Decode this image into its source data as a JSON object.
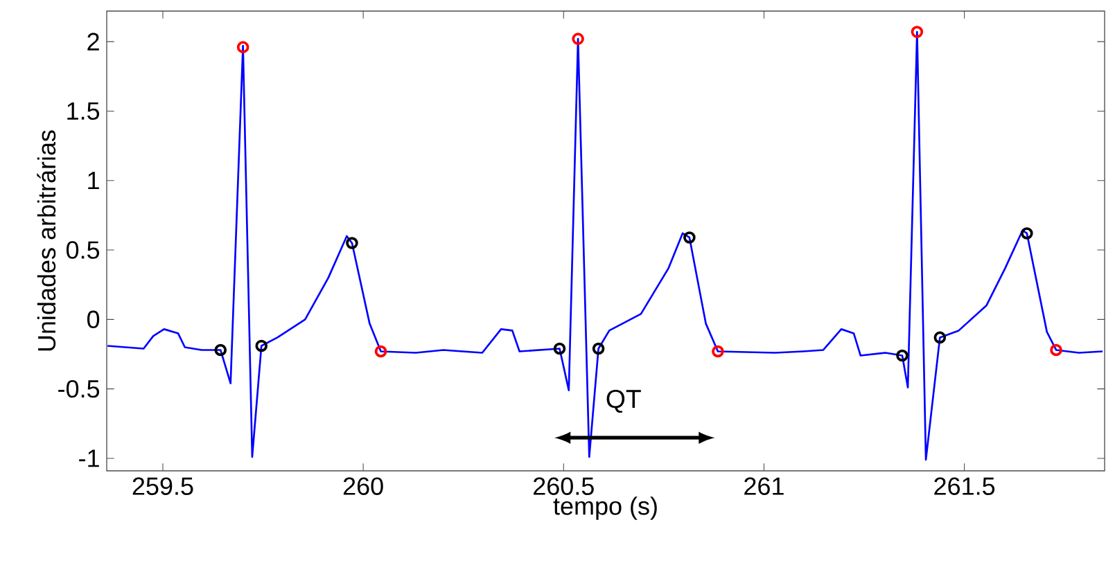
{
  "chart_data": {
    "type": "line",
    "xlabel": "tempo (s)",
    "ylabel": "Unidades arbitrárias",
    "xlim": [
      259.36,
      261.85
    ],
    "ylim": [
      -1.09,
      2.22
    ],
    "xticks": [
      259.5,
      260,
      260.5,
      261,
      261.5
    ],
    "yticks": [
      -1,
      -0.5,
      0,
      0.5,
      1,
      1.5,
      2
    ],
    "marker": "none",
    "line_style": "solid",
    "series": [
      {
        "color": "#0000ff",
        "x": [
          259.362,
          259.452,
          259.476,
          259.503,
          259.538,
          259.555,
          259.597,
          259.644,
          259.669,
          259.7,
          259.723,
          259.746,
          259.786,
          259.855,
          259.913,
          259.959,
          259.972,
          260.016,
          260.044,
          260.131,
          260.2,
          260.297,
          260.344,
          260.372,
          260.39,
          260.49,
          260.513,
          260.536,
          260.564,
          260.587,
          260.614,
          260.693,
          260.762,
          260.797,
          260.814,
          260.855,
          260.885,
          261.028,
          261.097,
          261.148,
          261.193,
          261.224,
          261.241,
          261.303,
          261.345,
          261.359,
          261.382,
          261.404,
          261.439,
          261.486,
          261.555,
          261.602,
          261.645,
          261.656,
          261.706,
          261.729,
          261.786,
          261.845
        ],
        "values": [
          -0.19,
          -0.21,
          -0.12,
          -0.07,
          -0.1,
          -0.2,
          -0.22,
          -0.22,
          -0.46,
          1.97,
          -0.99,
          -0.19,
          -0.13,
          0.0,
          0.3,
          0.6,
          0.55,
          -0.03,
          -0.23,
          -0.24,
          -0.22,
          -0.24,
          -0.07,
          -0.08,
          -0.23,
          -0.21,
          -0.51,
          2.02,
          -0.99,
          -0.21,
          -0.08,
          0.04,
          0.37,
          0.62,
          0.59,
          -0.03,
          -0.23,
          -0.24,
          -0.23,
          -0.22,
          -0.07,
          -0.1,
          -0.26,
          -0.24,
          -0.26,
          -0.49,
          2.07,
          -1.01,
          -0.13,
          -0.08,
          0.1,
          0.37,
          0.64,
          0.62,
          -0.09,
          -0.22,
          -0.24,
          -0.23
        ]
      },
      {
        "type": "scatter",
        "marker": "circle",
        "color": "#ff0000",
        "x": [
          259.7,
          260.044,
          260.536,
          260.885,
          261.382,
          261.729
        ],
        "values": [
          1.96,
          -0.23,
          2.02,
          -0.23,
          2.07,
          -0.22
        ]
      },
      {
        "type": "scatter",
        "marker": "circle",
        "color": "#000000",
        "x": [
          259.644,
          259.746,
          259.972,
          260.49,
          260.587,
          260.814,
          261.345,
          261.439,
          261.656
        ],
        "values": [
          -0.22,
          -0.19,
          0.55,
          -0.21,
          -0.21,
          0.59,
          -0.26,
          -0.13,
          0.62
        ]
      }
    ],
    "annotations": [
      "QT"
    ]
  }
}
